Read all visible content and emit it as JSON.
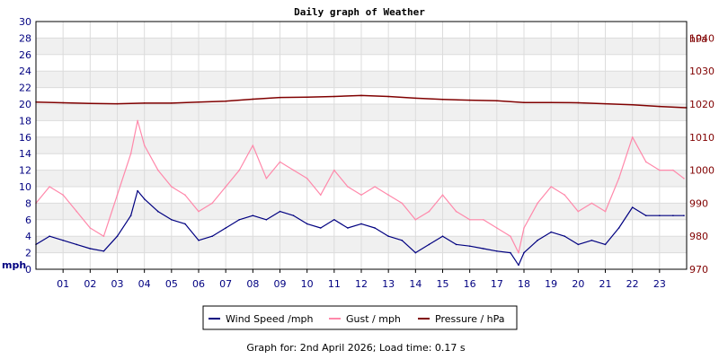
{
  "chart_data": {
    "type": "line",
    "title": "Daily graph of Weather",
    "y_left": {
      "unit": "mph",
      "ylim": [
        0,
        30
      ],
      "ticks": [
        0,
        2,
        4,
        6,
        8,
        10,
        12,
        14,
        16,
        18,
        20,
        22,
        24,
        26,
        28,
        30
      ]
    },
    "y_right": {
      "unit": "hPa",
      "ylim": [
        970,
        1045
      ],
      "ticks": [
        970,
        980,
        990,
        1000,
        1010,
        1020,
        1030,
        1040
      ]
    },
    "x": {
      "range_hours": [
        0,
        24
      ],
      "tick_labels": [
        "01",
        "02",
        "03",
        "04",
        "05",
        "06",
        "07",
        "08",
        "09",
        "10",
        "11",
        "12",
        "13",
        "14",
        "15",
        "16",
        "17",
        "18",
        "19",
        "20",
        "21",
        "22",
        "23"
      ]
    },
    "grid": true,
    "series": [
      {
        "name": "Wind Speed /mph",
        "axis": "left",
        "color": "#000080",
        "hours": [
          0,
          0.5,
          1,
          1.5,
          2,
          2.5,
          3,
          3.5,
          3.75,
          4,
          4.5,
          5,
          5.5,
          6,
          6.5,
          7,
          7.5,
          8,
          8.5,
          9,
          9.5,
          10,
          10.5,
          11,
          11.5,
          12,
          12.5,
          13,
          13.5,
          14,
          14.5,
          15,
          15.5,
          16,
          16.5,
          17,
          17.5,
          17.8,
          18,
          18.5,
          19,
          19.5,
          20,
          20.5,
          21,
          21.5,
          22,
          22.5,
          23,
          23.5,
          23.9
        ],
        "values": [
          3,
          4,
          3.5,
          3,
          2.5,
          2.2,
          4,
          6.5,
          9.5,
          8.5,
          7,
          6,
          5.5,
          3.5,
          4,
          5,
          6,
          6.5,
          6,
          7,
          6.5,
          5.5,
          5,
          6,
          5,
          5.5,
          5,
          4,
          3.5,
          2,
          3,
          4,
          3,
          2.8,
          2.5,
          2.2,
          2,
          0.5,
          2,
          3.5,
          4.5,
          4,
          3,
          3.5,
          3,
          5,
          7.5,
          6.5,
          6.5,
          6.5,
          6.5
        ]
      },
      {
        "name": "Gust / mph",
        "axis": "left",
        "color": "#ff88aa",
        "hours": [
          0,
          0.5,
          1,
          1.5,
          2,
          2.5,
          3,
          3.5,
          3.75,
          4,
          4.5,
          5,
          5.5,
          6,
          6.5,
          7,
          7.5,
          8,
          8.5,
          9,
          9.5,
          10,
          10.5,
          11,
          11.5,
          12,
          12.5,
          13,
          13.5,
          14,
          14.5,
          15,
          15.5,
          16,
          16.5,
          17,
          17.5,
          17.8,
          18,
          18.5,
          19,
          19.5,
          20,
          20.5,
          21,
          21.5,
          22,
          22.5,
          23,
          23.5,
          23.9
        ],
        "values": [
          8,
          10,
          9,
          7,
          5,
          4,
          9,
          14,
          18,
          15,
          12,
          10,
          9,
          7,
          8,
          10,
          12,
          15,
          11,
          13,
          12,
          11,
          9,
          12,
          10,
          9,
          10,
          9,
          8,
          6,
          7,
          9,
          7,
          6,
          6,
          5,
          4,
          2,
          5,
          8,
          10,
          9,
          7,
          8,
          7,
          11,
          16,
          13,
          12,
          12,
          11
        ]
      },
      {
        "name": "Pressure / hPa",
        "axis": "right",
        "color": "#800000",
        "hours": [
          0,
          1,
          2,
          3,
          4,
          5,
          6,
          7,
          8,
          9,
          10,
          11,
          12,
          13,
          14,
          15,
          16,
          17,
          18,
          19,
          20,
          21,
          22,
          23,
          24
        ],
        "values": [
          1020.6,
          1020.4,
          1020.2,
          1020.1,
          1020.3,
          1020.3,
          1020.6,
          1020.9,
          1021.5,
          1022.0,
          1022.1,
          1022.3,
          1022.6,
          1022.3,
          1021.8,
          1021.4,
          1021.2,
          1021.0,
          1020.5,
          1020.5,
          1020.4,
          1020.1,
          1019.8,
          1019.3,
          1018.9
        ]
      }
    ]
  },
  "footer": "Graph for: 2nd April 2026; Load time: 0.17 s"
}
